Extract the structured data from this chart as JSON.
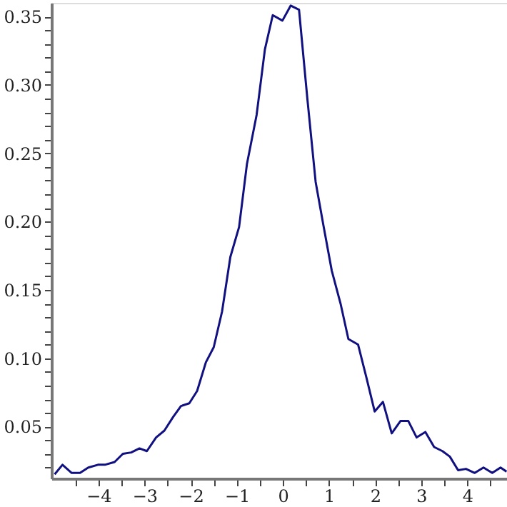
{
  "chart_data": {
    "type": "line",
    "x": [
      -4.95,
      -4.78,
      -4.58,
      -4.4,
      -4.22,
      -4.01,
      -3.86,
      -3.65,
      -3.47,
      -3.29,
      -3.11,
      -2.95,
      -2.75,
      -2.57,
      -2.38,
      -2.21,
      -2.03,
      -1.86,
      -1.67,
      -1.5,
      -1.32,
      -1.14,
      -0.95,
      -0.78,
      -0.57,
      -0.39,
      -0.22,
      -0.01,
      0.17,
      0.35,
      0.53,
      0.71,
      0.88,
      1.06,
      1.25,
      1.42,
      1.63,
      1.81,
      1.99,
      2.17,
      2.36,
      2.55,
      2.72,
      2.9,
      3.09,
      3.28,
      3.46,
      3.62,
      3.8,
      3.97,
      4.16,
      4.35,
      4.54,
      4.72,
      4.85
    ],
    "series": [
      {
        "color": "#101080",
        "values": [
          0.015,
          0.022,
          0.016,
          0.016,
          0.02,
          0.022,
          0.022,
          0.024,
          0.03,
          0.031,
          0.034,
          0.032,
          0.042,
          0.047,
          0.057,
          0.065,
          0.067,
          0.076,
          0.097,
          0.108,
          0.134,
          0.174,
          0.196,
          0.242,
          0.278,
          0.326,
          0.351,
          0.347,
          0.358,
          0.355,
          0.29,
          0.229,
          0.197,
          0.164,
          0.14,
          0.114,
          0.11,
          0.086,
          0.061,
          0.068,
          0.045,
          0.054,
          0.054,
          0.042,
          0.046,
          0.035,
          0.032,
          0.028,
          0.018,
          0.019,
          0.016,
          0.02,
          0.016,
          0.02,
          0.017
        ]
      }
    ],
    "xlim": [
      -5.02,
      4.86
    ],
    "ylim": [
      0.012,
      0.36
    ],
    "xticks": [
      {
        "value": -4.5,
        "label": null
      },
      {
        "value": -4,
        "label": "−4"
      },
      {
        "value": -3.5,
        "label": null
      },
      {
        "value": -3,
        "label": "−3"
      },
      {
        "value": -2.5,
        "label": null
      },
      {
        "value": -2,
        "label": "−2"
      },
      {
        "value": -1.5,
        "label": null
      },
      {
        "value": -1,
        "label": "−1"
      },
      {
        "value": -0.5,
        "label": null
      },
      {
        "value": 0,
        "label": "0"
      },
      {
        "value": 0.5,
        "label": null
      },
      {
        "value": 1,
        "label": "1"
      },
      {
        "value": 1.5,
        "label": null
      },
      {
        "value": 2,
        "label": "2"
      },
      {
        "value": 2.5,
        "label": null
      },
      {
        "value": 3,
        "label": "3"
      },
      {
        "value": 3.5,
        "label": null
      },
      {
        "value": 4,
        "label": "4"
      },
      {
        "value": 4.5,
        "label": null
      }
    ],
    "yticks": [
      {
        "value": 0.02,
        "label": null
      },
      {
        "value": 0.03,
        "label": null
      },
      {
        "value": 0.04,
        "label": null
      },
      {
        "value": 0.05,
        "label": "0.05"
      },
      {
        "value": 0.06,
        "label": null
      },
      {
        "value": 0.07,
        "label": null
      },
      {
        "value": 0.08,
        "label": null
      },
      {
        "value": 0.09,
        "label": null
      },
      {
        "value": 0.1,
        "label": "0.10"
      },
      {
        "value": 0.11,
        "label": null
      },
      {
        "value": 0.12,
        "label": null
      },
      {
        "value": 0.13,
        "label": null
      },
      {
        "value": 0.14,
        "label": null
      },
      {
        "value": 0.15,
        "label": "0.15"
      },
      {
        "value": 0.16,
        "label": null
      },
      {
        "value": 0.17,
        "label": null
      },
      {
        "value": 0.18,
        "label": null
      },
      {
        "value": 0.19,
        "label": null
      },
      {
        "value": 0.2,
        "label": "0.20"
      },
      {
        "value": 0.21,
        "label": null
      },
      {
        "value": 0.22,
        "label": null
      },
      {
        "value": 0.23,
        "label": null
      },
      {
        "value": 0.24,
        "label": null
      },
      {
        "value": 0.25,
        "label": "0.25"
      },
      {
        "value": 0.26,
        "label": null
      },
      {
        "value": 0.27,
        "label": null
      },
      {
        "value": 0.28,
        "label": null
      },
      {
        "value": 0.29,
        "label": null
      },
      {
        "value": 0.3,
        "label": "0.30"
      },
      {
        "value": 0.31,
        "label": null
      },
      {
        "value": 0.32,
        "label": null
      },
      {
        "value": 0.33,
        "label": null
      },
      {
        "value": 0.34,
        "label": null
      },
      {
        "value": 0.35,
        "label": "0.35"
      }
    ],
    "grid": false,
    "marker": "none",
    "line_style": "solid"
  }
}
